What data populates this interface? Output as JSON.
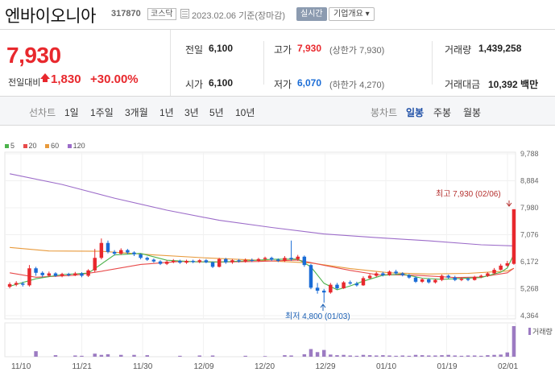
{
  "header": {
    "name": "엔바이오니아",
    "code": "317870",
    "market": "코스닥",
    "date_label": "2023.02.06 기준(장마감)",
    "realtime_label": "실시간",
    "info_label": "기업개요 ▾"
  },
  "quote": {
    "price": "7,930",
    "change_label": "전일대비",
    "change": "1,830",
    "change_pct": "+30.00%",
    "prev_label": "전일",
    "prev": "6,100",
    "high_label": "고가",
    "high": "7,930",
    "high_sub": "(상한가 7,930)",
    "volume_label": "거래량",
    "volume": "1,439,258",
    "open_label": "시가",
    "open": "6,100",
    "low_label": "저가",
    "low": "6,070",
    "low_sub": "(하한가 4,270)",
    "amount_label": "거래대금",
    "amount": "10,392 백만"
  },
  "periods": {
    "line_chart_label": "선차트",
    "line_items": [
      "1일",
      "1주일",
      "3개월",
      "1년",
      "3년",
      "5년",
      "10년"
    ],
    "candle_chart_label": "봉차트",
    "candle_items": [
      "일봉",
      "주봉",
      "월봉"
    ],
    "selected": "일봉"
  },
  "colors": {
    "up": "#e8282d",
    "down": "#1a6cd6",
    "ma5": "#4cb34c",
    "ma20": "#e84a4a",
    "ma60": "#e89a3c",
    "ma120": "#9c6cc9",
    "volume": "#9c7bc2"
  },
  "chart_data": {
    "type": "candlestick",
    "legend": [
      "5",
      "20",
      "60",
      "120"
    ],
    "y_ticks": [
      "9,788",
      "8,884",
      "7,980",
      "7,076",
      "6,172",
      "5,268",
      "4,364"
    ],
    "ylim": [
      4364,
      9788
    ],
    "x_ticks": [
      "11/10",
      "11/21",
      "11/30",
      "12/09",
      "12/20",
      "12/29",
      "01/10",
      "01/19",
      "02/01"
    ],
    "annotations": {
      "high": "최고 7,930 (02/06)",
      "low": "최저 4,800 (01/03)"
    },
    "volume_label": "거래량",
    "candles": [
      {
        "o": 5330,
        "c": 5420,
        "h": 5480,
        "l": 5280
      },
      {
        "o": 5400,
        "c": 5460,
        "h": 5520,
        "l": 5350
      },
      {
        "o": 5440,
        "c": 5400,
        "h": 5500,
        "l": 5340
      },
      {
        "o": 5380,
        "c": 5950,
        "h": 6060,
        "l": 5340
      },
      {
        "o": 5950,
        "c": 5800,
        "h": 6000,
        "l": 5700
      },
      {
        "o": 5800,
        "c": 5720,
        "h": 5850,
        "l": 5650
      },
      {
        "o": 5700,
        "c": 5780,
        "h": 5840,
        "l": 5660
      },
      {
        "o": 5780,
        "c": 5700,
        "h": 5820,
        "l": 5660
      },
      {
        "o": 5700,
        "c": 5760,
        "h": 5800,
        "l": 5650
      },
      {
        "o": 5760,
        "c": 5720,
        "h": 5800,
        "l": 5680
      },
      {
        "o": 5720,
        "c": 5780,
        "h": 5830,
        "l": 5690
      },
      {
        "o": 5780,
        "c": 5700,
        "h": 5820,
        "l": 5650
      },
      {
        "o": 5700,
        "c": 5880,
        "h": 5920,
        "l": 5660
      },
      {
        "o": 5880,
        "c": 6300,
        "h": 6600,
        "l": 5820
      },
      {
        "o": 6300,
        "c": 6800,
        "h": 6950,
        "l": 6250
      },
      {
        "o": 6800,
        "c": 6500,
        "h": 6880,
        "l": 6450
      },
      {
        "o": 6500,
        "c": 6440,
        "h": 6560,
        "l": 6380
      },
      {
        "o": 6440,
        "c": 6560,
        "h": 6620,
        "l": 6400
      },
      {
        "o": 6560,
        "c": 6480,
        "h": 6600,
        "l": 6420
      },
      {
        "o": 6480,
        "c": 6420,
        "h": 6520,
        "l": 6360
      },
      {
        "o": 6420,
        "c": 6300,
        "h": 6450,
        "l": 6250
      },
      {
        "o": 6300,
        "c": 6240,
        "h": 6340,
        "l": 6200
      },
      {
        "o": 6240,
        "c": 6180,
        "h": 6280,
        "l": 6140
      },
      {
        "o": 6180,
        "c": 6100,
        "h": 6220,
        "l": 6060
      },
      {
        "o": 6100,
        "c": 6170,
        "h": 6220,
        "l": 6060
      },
      {
        "o": 6170,
        "c": 6200,
        "h": 6260,
        "l": 6120
      },
      {
        "o": 6200,
        "c": 6140,
        "h": 6240,
        "l": 6100
      },
      {
        "o": 6140,
        "c": 6200,
        "h": 6240,
        "l": 6100
      },
      {
        "o": 6200,
        "c": 6160,
        "h": 6240,
        "l": 6120
      },
      {
        "o": 6160,
        "c": 6220,
        "h": 6260,
        "l": 6120
      },
      {
        "o": 6220,
        "c": 6150,
        "h": 6260,
        "l": 6120
      },
      {
        "o": 6150,
        "c": 6000,
        "h": 6180,
        "l": 5960
      },
      {
        "o": 6000,
        "c": 6260,
        "h": 6300,
        "l": 5980
      },
      {
        "o": 6260,
        "c": 6150,
        "h": 6300,
        "l": 6100
      },
      {
        "o": 6150,
        "c": 6220,
        "h": 6260,
        "l": 6100
      },
      {
        "o": 6220,
        "c": 6180,
        "h": 6260,
        "l": 6140
      },
      {
        "o": 6180,
        "c": 6230,
        "h": 6280,
        "l": 6140
      },
      {
        "o": 6230,
        "c": 6200,
        "h": 6280,
        "l": 6160
      },
      {
        "o": 6200,
        "c": 6260,
        "h": 6300,
        "l": 6160
      },
      {
        "o": 6260,
        "c": 6300,
        "h": 6340,
        "l": 6200
      },
      {
        "o": 6300,
        "c": 6240,
        "h": 6340,
        "l": 6200
      },
      {
        "o": 6240,
        "c": 6200,
        "h": 6280,
        "l": 6160
      },
      {
        "o": 6200,
        "c": 6300,
        "h": 6360,
        "l": 6160
      },
      {
        "o": 6300,
        "c": 6260,
        "h": 6880,
        "l": 6200
      },
      {
        "o": 6260,
        "c": 6340,
        "h": 6400,
        "l": 6200
      },
      {
        "o": 6340,
        "c": 6060,
        "h": 6380,
        "l": 6000
      },
      {
        "o": 6060,
        "c": 5300,
        "h": 6100,
        "l": 5250
      },
      {
        "o": 5300,
        "c": 5200,
        "h": 5460,
        "l": 5100
      },
      {
        "o": 5200,
        "c": 5140,
        "h": 5260,
        "l": 4800
      },
      {
        "o": 5140,
        "c": 5400,
        "h": 5460,
        "l": 5100
      },
      {
        "o": 5400,
        "c": 5280,
        "h": 5460,
        "l": 5240
      },
      {
        "o": 5280,
        "c": 5480,
        "h": 5520,
        "l": 5260
      },
      {
        "o": 5480,
        "c": 5440,
        "h": 5540,
        "l": 5400
      },
      {
        "o": 5440,
        "c": 5380,
        "h": 5500,
        "l": 5340
      },
      {
        "o": 5380,
        "c": 5620,
        "h": 5680,
        "l": 5360
      },
      {
        "o": 5620,
        "c": 5700,
        "h": 5760,
        "l": 5580
      },
      {
        "o": 5700,
        "c": 5780,
        "h": 5830,
        "l": 5660
      },
      {
        "o": 5780,
        "c": 5720,
        "h": 5830,
        "l": 5680
      },
      {
        "o": 5720,
        "c": 5840,
        "h": 5880,
        "l": 5700
      },
      {
        "o": 5840,
        "c": 5780,
        "h": 5900,
        "l": 5740
      },
      {
        "o": 5780,
        "c": 5720,
        "h": 5820,
        "l": 5680
      },
      {
        "o": 5720,
        "c": 5640,
        "h": 5760,
        "l": 5600
      },
      {
        "o": 5640,
        "c": 5500,
        "h": 5680,
        "l": 5460
      },
      {
        "o": 5500,
        "c": 5580,
        "h": 5620,
        "l": 5460
      },
      {
        "o": 5580,
        "c": 5480,
        "h": 5620,
        "l": 5440
      },
      {
        "o": 5480,
        "c": 5560,
        "h": 5600,
        "l": 5440
      },
      {
        "o": 5560,
        "c": 5700,
        "h": 5740,
        "l": 5520
      },
      {
        "o": 5700,
        "c": 5640,
        "h": 5740,
        "l": 5600
      },
      {
        "o": 5640,
        "c": 5560,
        "h": 5700,
        "l": 5520
      },
      {
        "o": 5560,
        "c": 5600,
        "h": 5640,
        "l": 5520
      },
      {
        "o": 5600,
        "c": 5560,
        "h": 5640,
        "l": 5520
      },
      {
        "o": 5560,
        "c": 5660,
        "h": 5700,
        "l": 5540
      },
      {
        "o": 5660,
        "c": 5700,
        "h": 5740,
        "l": 5620
      },
      {
        "o": 5700,
        "c": 5780,
        "h": 5820,
        "l": 5660
      },
      {
        "o": 5780,
        "c": 5900,
        "h": 5960,
        "l": 5760
      },
      {
        "o": 5900,
        "c": 6040,
        "h": 6100,
        "l": 5880
      },
      {
        "o": 6040,
        "c": 6120,
        "h": 6200,
        "l": 6000
      },
      {
        "o": 6100,
        "c": 7930,
        "h": 7930,
        "l": 6070
      }
    ],
    "ma5": [
      [
        0,
        5350
      ],
      [
        4,
        5600
      ],
      [
        8,
        5740
      ],
      [
        12,
        5790
      ],
      [
        16,
        6400
      ],
      [
        20,
        6450
      ],
      [
        24,
        6220
      ],
      [
        28,
        6170
      ],
      [
        32,
        6160
      ],
      [
        36,
        6200
      ],
      [
        40,
        6250
      ],
      [
        44,
        6260
      ],
      [
        46,
        6000
      ],
      [
        48,
        5450
      ],
      [
        50,
        5230
      ],
      [
        52,
        5360
      ],
      [
        54,
        5520
      ],
      [
        57,
        5720
      ],
      [
        60,
        5760
      ],
      [
        63,
        5620
      ],
      [
        66,
        5580
      ],
      [
        69,
        5610
      ],
      [
        72,
        5640
      ],
      [
        75,
        5820
      ],
      [
        76,
        5960
      ],
      [
        77,
        6420
      ]
    ],
    "ma20": [
      [
        0,
        5800
      ],
      [
        4,
        5650
      ],
      [
        10,
        5720
      ],
      [
        14,
        5850
      ],
      [
        20,
        6080
      ],
      [
        26,
        6180
      ],
      [
        32,
        6160
      ],
      [
        38,
        6180
      ],
      [
        44,
        6230
      ],
      [
        48,
        6050
      ],
      [
        52,
        5880
      ],
      [
        56,
        5740
      ],
      [
        62,
        5720
      ],
      [
        68,
        5640
      ],
      [
        72,
        5660
      ],
      [
        76,
        5800
      ],
      [
        77,
        5950
      ]
    ],
    "ma60": [
      [
        0,
        6650
      ],
      [
        6,
        6530
      ],
      [
        14,
        6520
      ],
      [
        22,
        6400
      ],
      [
        30,
        6300
      ],
      [
        38,
        6220
      ],
      [
        46,
        6130
      ],
      [
        52,
        5940
      ],
      [
        58,
        5800
      ],
      [
        64,
        5760
      ],
      [
        70,
        5780
      ],
      [
        76,
        5860
      ],
      [
        77,
        5950
      ]
    ],
    "ma120": [
      [
        0,
        9120
      ],
      [
        8,
        8760
      ],
      [
        16,
        8300
      ],
      [
        24,
        7900
      ],
      [
        32,
        7560
      ],
      [
        40,
        7320
      ],
      [
        48,
        7100
      ],
      [
        56,
        6980
      ],
      [
        64,
        6870
      ],
      [
        72,
        6740
      ],
      [
        77,
        6700
      ]
    ],
    "volume": [
      0,
      0,
      0,
      0,
      0.18,
      0,
      0,
      0.05,
      0,
      0,
      0.04,
      0.03,
      0,
      0.1,
      0.06,
      0.08,
      0,
      0.06,
      0,
      0.06,
      0,
      0.05,
      0,
      0,
      0,
      0,
      0.03,
      0,
      0,
      0.04,
      0,
      0.04,
      0,
      0,
      0,
      0,
      0.03,
      0,
      0,
      0.02,
      0,
      0,
      0.05,
      0.04,
      0,
      0.08,
      0.25,
      0.15,
      0.22,
      0.07,
      0.05,
      0.06,
      0.04,
      0.03,
      0.06,
      0.05,
      0.04,
      0.05,
      0.04,
      0.03,
      0.04,
      0.03,
      0.06,
      0.05,
      0.04,
      0.04,
      0.05,
      0.06,
      0.04,
      0.03,
      0.04,
      0.04,
      0.03,
      0.05,
      0.06,
      0.07,
      0.14,
      1.0
    ]
  }
}
